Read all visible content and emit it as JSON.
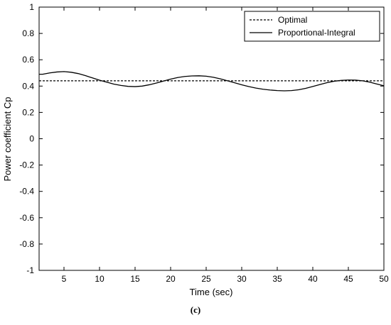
{
  "chart_data": {
    "type": "line",
    "xlabel": "Time (sec)",
    "ylabel": "Power coefficient Cp",
    "xlim": [
      1.5,
      50
    ],
    "ylim": [
      -1,
      1
    ],
    "xticks": [
      5,
      10,
      15,
      20,
      25,
      30,
      35,
      40,
      45,
      50
    ],
    "yticks": [
      -1,
      -0.8,
      -0.6,
      -0.4,
      -0.2,
      0,
      0.2,
      0.4,
      0.6,
      0.8,
      1
    ],
    "grid": false,
    "legend_position": "top-right",
    "series": [
      {
        "name": "Optimal",
        "style": "dashed",
        "color": "#000000",
        "x": [
          1.5,
          50
        ],
        "y": [
          0.44,
          0.44
        ]
      },
      {
        "name": "Proportional-Integral",
        "style": "solid",
        "color": "#000000",
        "x": [
          1.5,
          2,
          3,
          4,
          5,
          6,
          7,
          8,
          9,
          10,
          11,
          12,
          13,
          14,
          15,
          16,
          17,
          18,
          19,
          20,
          21,
          22,
          23,
          24,
          25,
          26,
          27,
          28,
          29,
          30,
          31,
          32,
          33,
          34,
          35,
          36,
          37,
          38,
          39,
          40,
          41,
          42,
          43,
          44,
          45,
          46,
          47,
          48,
          49,
          50
        ],
        "y": [
          0.49,
          0.49,
          0.5,
          0.507,
          0.51,
          0.505,
          0.495,
          0.48,
          0.462,
          0.445,
          0.43,
          0.415,
          0.405,
          0.398,
          0.396,
          0.4,
          0.41,
          0.423,
          0.438,
          0.453,
          0.465,
          0.473,
          0.477,
          0.478,
          0.475,
          0.467,
          0.455,
          0.44,
          0.425,
          0.41,
          0.396,
          0.385,
          0.376,
          0.37,
          0.366,
          0.364,
          0.366,
          0.372,
          0.383,
          0.397,
          0.412,
          0.426,
          0.437,
          0.443,
          0.446,
          0.445,
          0.44,
          0.43,
          0.416,
          0.402
        ]
      }
    ]
  },
  "caption": "(c)"
}
